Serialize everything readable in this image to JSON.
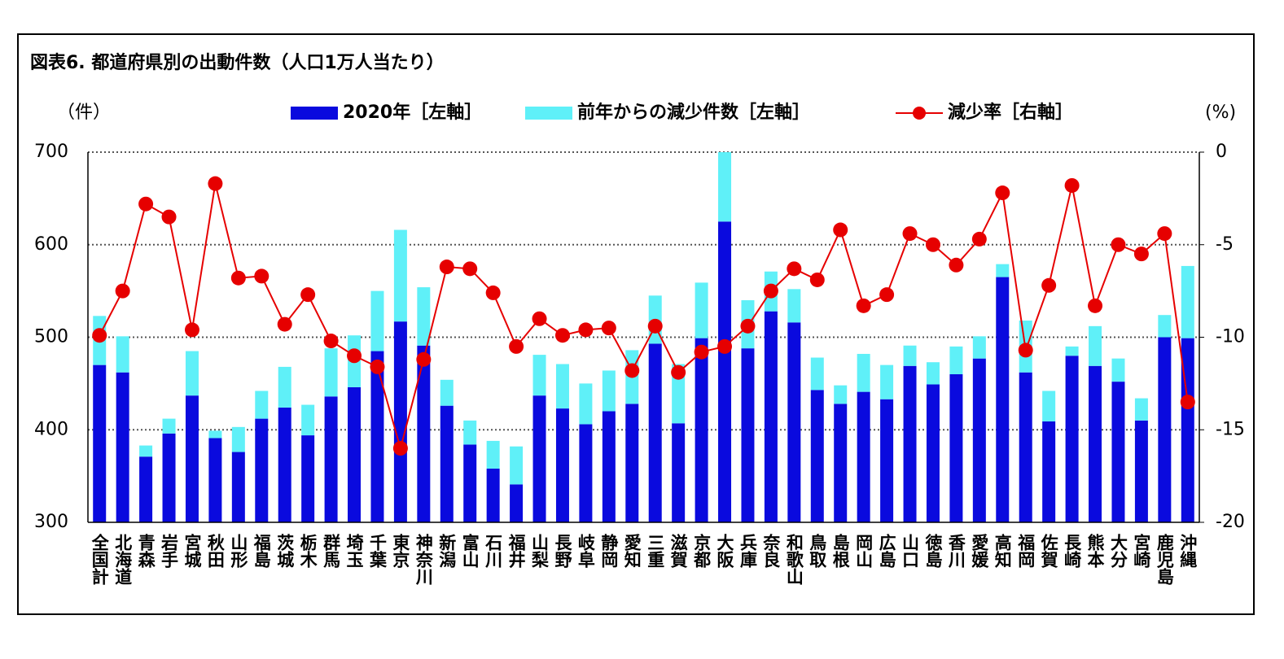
{
  "chart_data": {
    "type": "bar",
    "title": "図表6.  都道府県別の出動件数（人口1万人当たり）",
    "y_label": "（件）",
    "y2_label": "(%)",
    "categories": [
      "全国計",
      "北海道",
      "青森",
      "岩手",
      "宮城",
      "秋田",
      "山形",
      "福島",
      "茨城",
      "栃木",
      "群馬",
      "埼玉",
      "千葉",
      "東京",
      "神奈川",
      "新潟",
      "富山",
      "石川",
      "福井",
      "山梨",
      "長野",
      "岐阜",
      "静岡",
      "愛知",
      "三重",
      "滋賀",
      "京都",
      "大阪",
      "兵庫",
      "奈良",
      "和歌山",
      "鳥取",
      "島根",
      "岡山",
      "広島",
      "山口",
      "徳島",
      "香川",
      "愛媛",
      "高知",
      "福岡",
      "佐賀",
      "長崎",
      "熊本",
      "大分",
      "宮崎",
      "鹿児島",
      "沖縄"
    ],
    "series": [
      {
        "name": "2020年［左軸］",
        "color": "#0a0ade",
        "stack": true,
        "values": [
          470,
          462,
          371,
          396,
          437,
          391,
          376,
          412,
          424,
          394,
          436,
          446,
          485,
          517,
          491,
          426,
          384,
          358,
          341,
          437,
          423,
          406,
          420,
          428,
          493,
          407,
          499,
          625,
          488,
          528,
          516,
          443,
          428,
          441,
          433,
          469,
          449,
          460,
          477,
          565,
          462,
          409,
          480,
          469,
          452,
          410,
          500,
          499
        ]
      },
      {
        "name": "前年からの減少件数［左軸］",
        "color": "#5ff0f8",
        "stack": true,
        "values": [
          53,
          39,
          12,
          16,
          48,
          8,
          27,
          30,
          44,
          33,
          52,
          56,
          65,
          99,
          63,
          28,
          26,
          30,
          41,
          44,
          48,
          44,
          44,
          58,
          52,
          64,
          60,
          75,
          52,
          43,
          36,
          35,
          20,
          41,
          37,
          22,
          24,
          30,
          24,
          14,
          56,
          33,
          10,
          43,
          25,
          24,
          24,
          78
        ]
      },
      {
        "name": "減少率［右軸］",
        "color": "#e60000",
        "type": "line",
        "axis": "y2",
        "values": [
          -9.9,
          -7.5,
          -2.8,
          -3.5,
          -9.6,
          -1.7,
          -6.8,
          -6.7,
          -9.3,
          -7.7,
          -10.2,
          -11.0,
          -11.6,
          -16.0,
          -11.2,
          -6.2,
          -6.3,
          -7.6,
          -10.5,
          -9.0,
          -9.9,
          -9.6,
          -9.5,
          -11.8,
          -9.4,
          -11.9,
          -10.8,
          -10.5,
          -9.4,
          -7.5,
          -6.3,
          -6.9,
          -4.2,
          -8.3,
          -7.7,
          -4.4,
          -5.0,
          -6.1,
          -4.7,
          -2.2,
          -10.7,
          -7.2,
          -1.8,
          -8.3,
          -5.0,
          -5.5,
          -4.4,
          -13.5
        ]
      }
    ],
    "ylim": [
      300,
      700
    ],
    "yticks": [
      300,
      400,
      500,
      600,
      700
    ],
    "y2lim": [
      -20,
      0
    ],
    "y2ticks": [
      0,
      -5,
      -10,
      -15,
      -20
    ],
    "grid": true,
    "legend": "top"
  }
}
